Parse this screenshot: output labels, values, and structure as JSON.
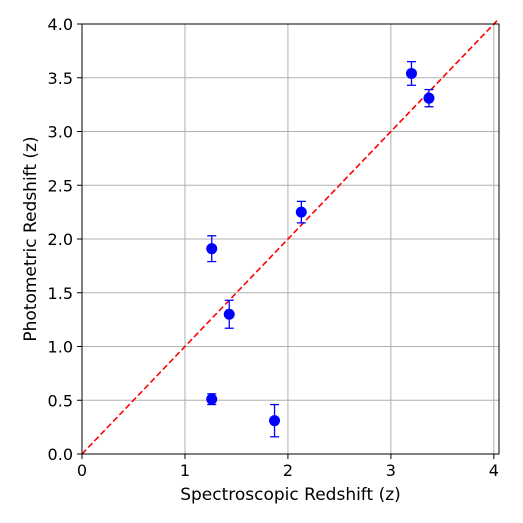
{
  "chart_data": {
    "type": "scatter",
    "title": "",
    "xlabel": "Spectroscopic Redshift (z)",
    "ylabel": "Photometric Redshift (z)",
    "xlim": [
      0,
      4.05
    ],
    "ylim": [
      0,
      4.0
    ],
    "xticks": [
      0,
      1,
      2,
      3,
      4
    ],
    "xtick_labels": [
      "0",
      "1",
      "2",
      "3",
      "4"
    ],
    "yticks": [
      0.0,
      0.5,
      1.0,
      1.5,
      2.0,
      2.5,
      3.0,
      3.5,
      4.0
    ],
    "ytick_labels": [
      "0.0",
      "0.5",
      "1.0",
      "1.5",
      "2.0",
      "2.5",
      "3.0",
      "3.5",
      "4.0"
    ],
    "grid": true,
    "point_color": "#0000ff",
    "reference_line": {
      "style": "dashed",
      "color": "#ff0000",
      "x": [
        0,
        4.05
      ],
      "y": [
        0,
        4.05
      ]
    },
    "points": [
      {
        "x": 1.26,
        "y": 1.91,
        "yerr": 0.12
      },
      {
        "x": 1.26,
        "y": 0.51,
        "yerr": 0.05
      },
      {
        "x": 1.43,
        "y": 1.3,
        "yerr": 0.13
      },
      {
        "x": 1.87,
        "y": 0.31,
        "yerr": 0.15
      },
      {
        "x": 2.13,
        "y": 2.25,
        "yerr": 0.1
      },
      {
        "x": 3.2,
        "y": 3.54,
        "yerr": 0.11
      },
      {
        "x": 3.37,
        "y": 3.31,
        "yerr": 0.08
      }
    ]
  }
}
